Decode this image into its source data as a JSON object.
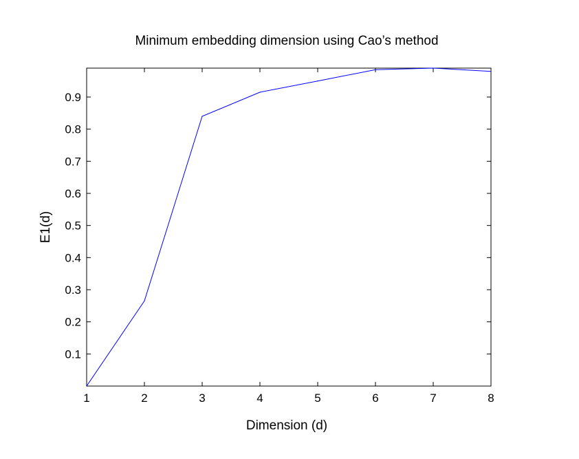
{
  "chart_data": {
    "type": "line",
    "title": "Minimum embedding dimension using Cao’s method",
    "xlabel": "Dimension (d)",
    "ylabel": "E1(d)",
    "xlim": [
      1,
      8
    ],
    "ylim": [
      0,
      0.99
    ],
    "x_ticks": [
      1,
      2,
      3,
      4,
      5,
      6,
      7,
      8
    ],
    "y_ticks": [
      0.1,
      0.2,
      0.3,
      0.4,
      0.5,
      0.6,
      0.7,
      0.8,
      0.9
    ],
    "grid": false,
    "series": [
      {
        "x": [
          1,
          2,
          3,
          4,
          5,
          6,
          7,
          8
        ],
        "y": [
          0.0,
          0.265,
          0.84,
          0.915,
          0.95,
          0.985,
          0.99,
          0.98
        ]
      }
    ]
  },
  "colors": {
    "line": "#0000ff",
    "axes": "#000000",
    "background": "#ffffff"
  }
}
